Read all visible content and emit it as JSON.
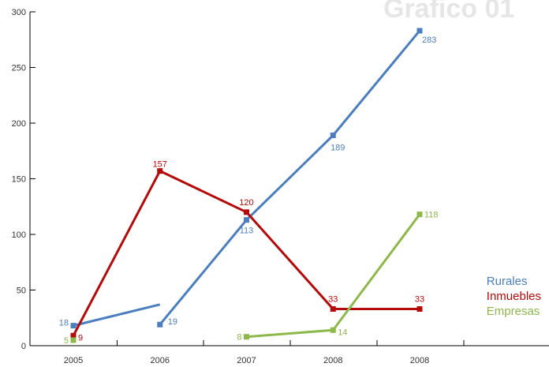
{
  "watermark": "Grafico 01",
  "chart_data": {
    "type": "line",
    "categories": [
      "2005",
      "2006",
      "2007",
      "2008",
      "2008"
    ],
    "ylim": [
      0,
      300
    ],
    "yticks": [
      0,
      50,
      100,
      150,
      200,
      250,
      300
    ],
    "grid": false,
    "legend_position": "bottom-right",
    "series": [
      {
        "name": "Rurales",
        "color": "#4a7ebf",
        "segments": [
          [
            {
              "x": 0,
              "y": 18,
              "label": "18"
            },
            {
              "x": 1,
              "y": 37,
              "label": ""
            }
          ],
          [
            {
              "x": 1,
              "y": 19,
              "label": "19"
            },
            {
              "x": 2,
              "y": 113,
              "label": "113"
            },
            {
              "x": 3,
              "y": 189,
              "label": "189"
            },
            {
              "x": 4,
              "y": 283,
              "label": "283"
            }
          ]
        ]
      },
      {
        "name": "Inmuebles",
        "color": "#b50a0a",
        "segments": [
          [
            {
              "x": 0,
              "y": 9,
              "label": "9"
            },
            {
              "x": 1,
              "y": 157,
              "label": "157"
            },
            {
              "x": 2,
              "y": 120,
              "label": "120"
            },
            {
              "x": 3,
              "y": 33,
              "label": "33"
            },
            {
              "x": 4,
              "y": 33,
              "label": "33"
            }
          ]
        ]
      },
      {
        "name": "Empresas",
        "color": "#8db84a",
        "segments": [
          [
            {
              "x": 0,
              "y": 5,
              "label": "5"
            }
          ],
          [
            {
              "x": 2,
              "y": 8,
              "label": "8"
            },
            {
              "x": 3,
              "y": 14,
              "label": "14"
            },
            {
              "x": 4,
              "y": 118,
              "label": "118"
            }
          ]
        ]
      }
    ]
  }
}
